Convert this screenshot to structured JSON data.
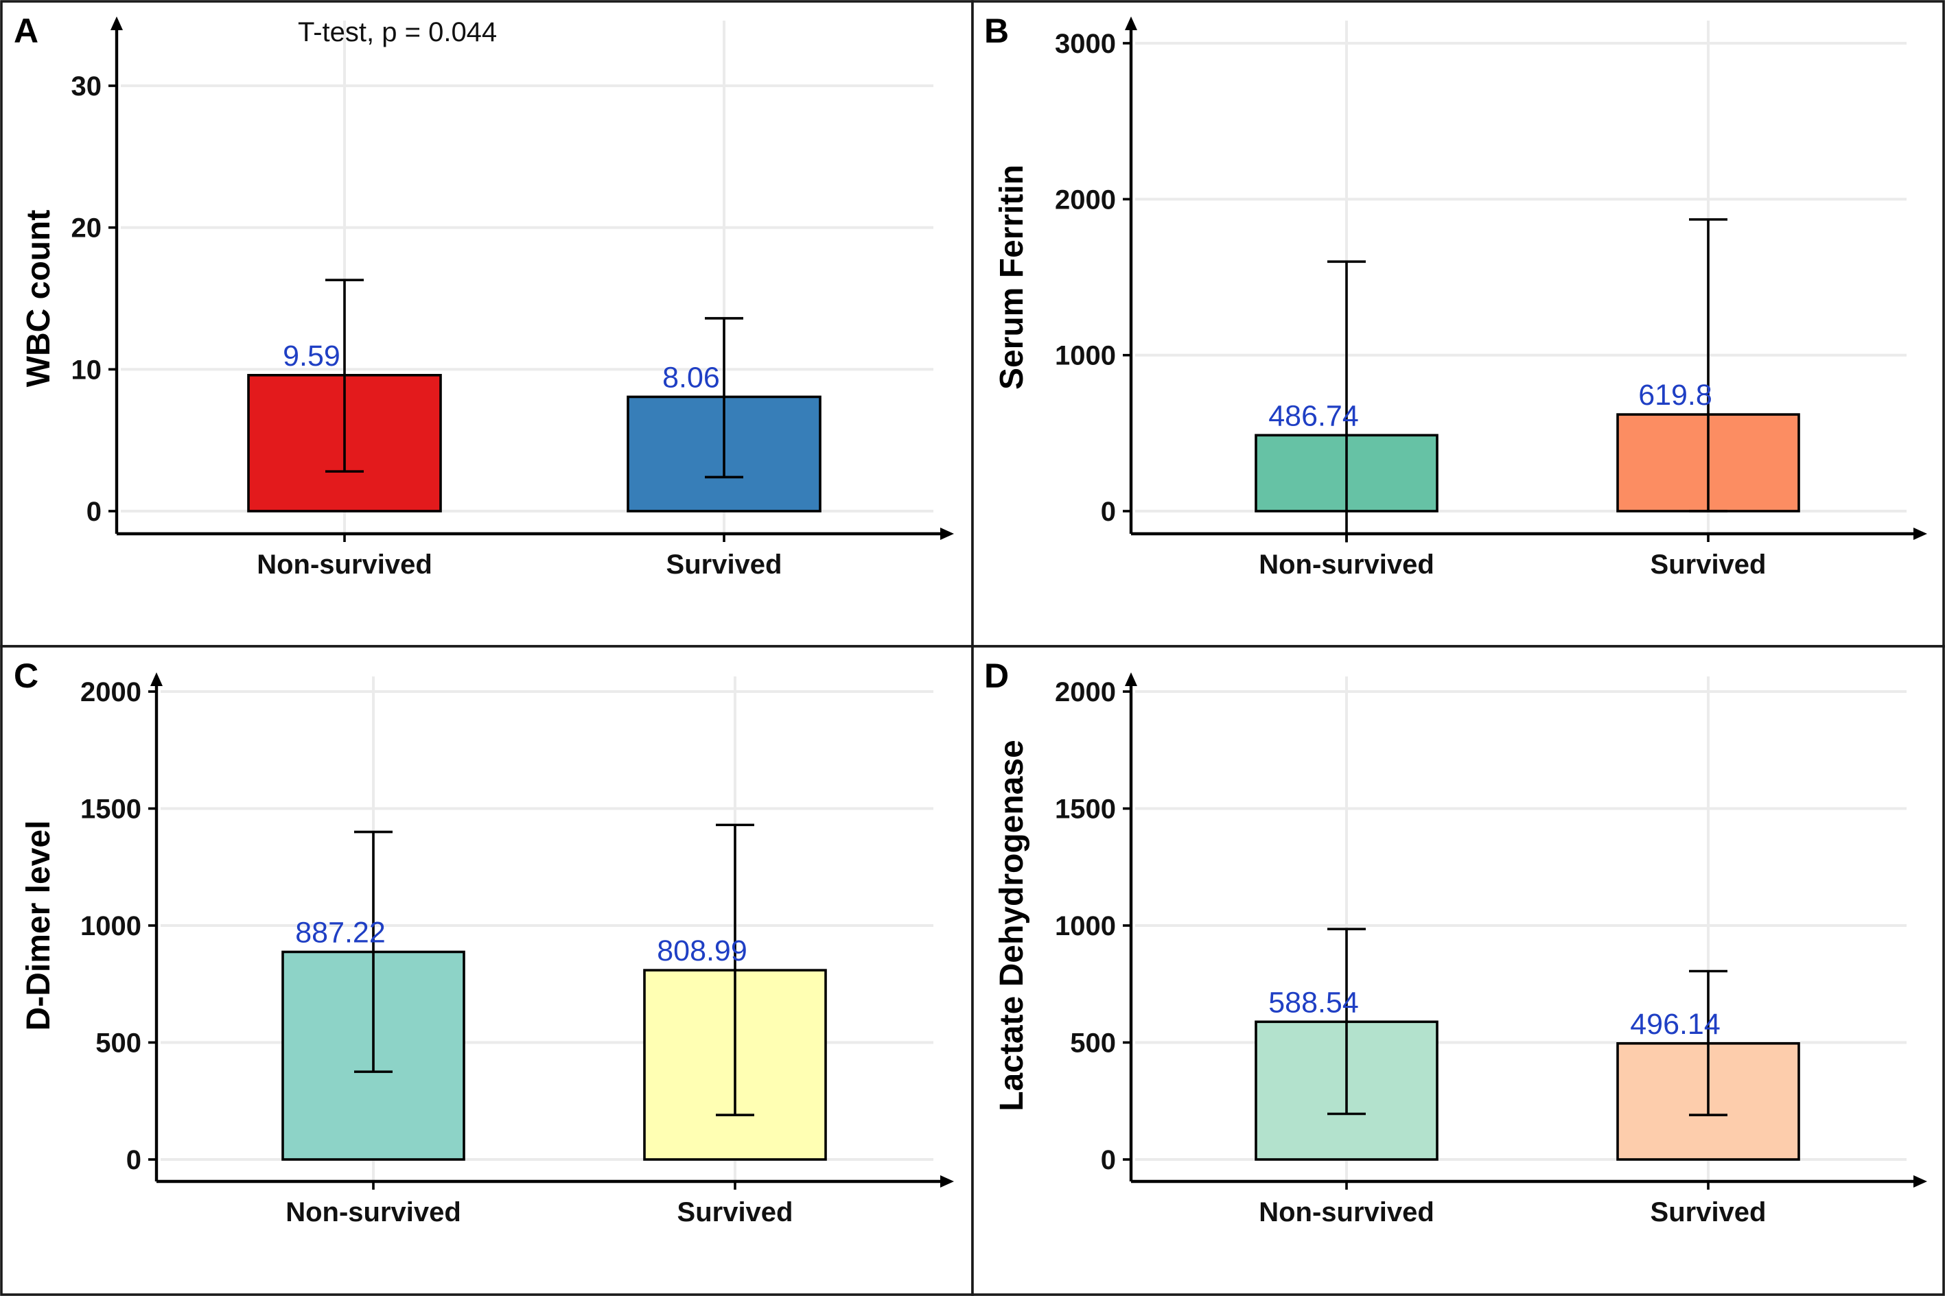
{
  "chart_data": [
    {
      "panel": "A",
      "type": "bar",
      "categories": [
        "Non-survived",
        "Survived"
      ],
      "values": [
        9.59,
        8.06
      ],
      "data_labels": [
        "9.59",
        "8.06"
      ],
      "error_low": [
        2.8,
        2.4
      ],
      "error_high": [
        16.3,
        13.6
      ],
      "colors": [
        "#e31a1c",
        "#377eb8"
      ],
      "ylabel": "WBC count",
      "ylim": [
        0,
        33
      ],
      "yticks": [
        0,
        10,
        20,
        30
      ],
      "ytick_labels": [
        "0",
        "10",
        "20",
        "30"
      ],
      "annotation": "T-test, p = 0.044",
      "grid": true
    },
    {
      "panel": "B",
      "type": "bar",
      "categories": [
        "Non-survived",
        "Survived"
      ],
      "values": [
        486.74,
        619.8
      ],
      "data_labels": [
        "486.74",
        "619.8"
      ],
      "error_low": [
        -200,
        0
      ],
      "error_high": [
        1600,
        1870
      ],
      "colors": [
        "#66c2a5",
        "#fc8d62"
      ],
      "ylabel": "Serum Ferritin",
      "ylim": [
        0,
        3100
      ],
      "yticks": [
        0,
        1000,
        2000,
        3000
      ],
      "ytick_labels": [
        "0",
        "1000",
        "2000",
        "3000"
      ],
      "annotation": "",
      "grid": true
    },
    {
      "panel": "C",
      "type": "bar",
      "categories": [
        "Non-survived",
        "Survived"
      ],
      "values": [
        887.22,
        808.99
      ],
      "data_labels": [
        "887.22",
        "808.99"
      ],
      "error_low": [
        375,
        190
      ],
      "error_high": [
        1400,
        1430
      ],
      "colors": [
        "#8dd3c7",
        "#ffffb3"
      ],
      "ylabel": "D-Dimer level",
      "ylim": [
        0,
        2040
      ],
      "yticks": [
        0,
        500,
        1000,
        1500,
        2000
      ],
      "ytick_labels": [
        "0",
        "500",
        "1000",
        "1500",
        "2000"
      ],
      "annotation": "",
      "grid": true
    },
    {
      "panel": "D",
      "type": "bar",
      "categories": [
        "Non-survived",
        "Survived"
      ],
      "values": [
        588.54,
        496.14
      ],
      "data_labels": [
        "588.54",
        "496.14"
      ],
      "error_low": [
        195,
        190
      ],
      "error_high": [
        985,
        805
      ],
      "colors": [
        "#b3e2cd",
        "#fdcdac"
      ],
      "ylabel": "Lactate Dehydrogenase",
      "ylim": [
        0,
        2040
      ],
      "yticks": [
        0,
        500,
        1000,
        1500,
        2000
      ],
      "ytick_labels": [
        "0",
        "500",
        "1000",
        "1500",
        "2000"
      ],
      "annotation": "",
      "grid": true
    }
  ]
}
